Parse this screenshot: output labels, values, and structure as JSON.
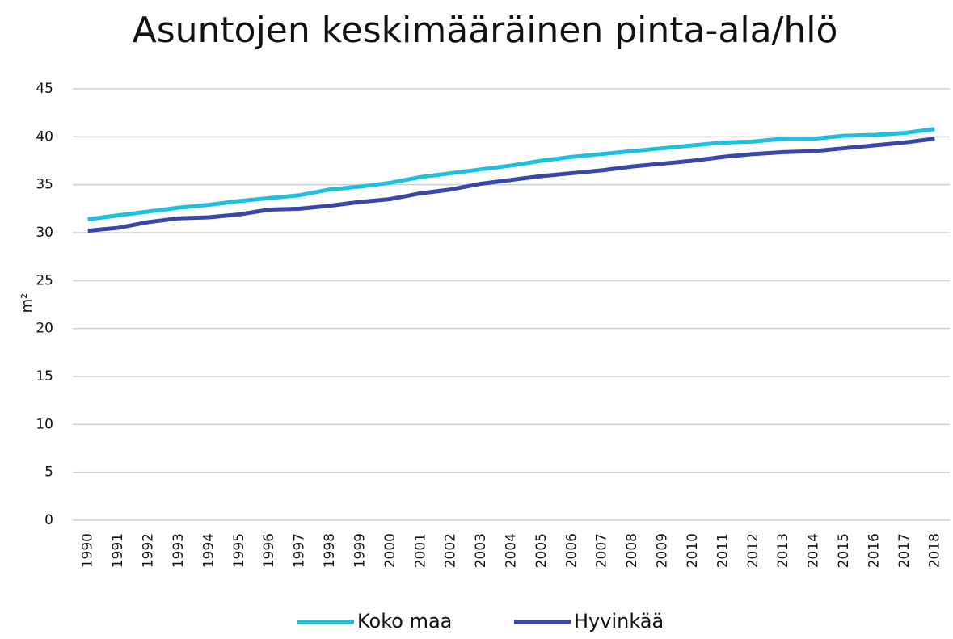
{
  "chart_data": {
    "type": "line",
    "title": "Asuntojen keskimääräinen pinta-ala/hlö",
    "y_label": "m²",
    "categories": [
      "1990",
      "1991",
      "1992",
      "1993",
      "1994",
      "1995",
      "1996",
      "1997",
      "1998",
      "1999",
      "2000",
      "2001",
      "2002",
      "2003",
      "2004",
      "2005",
      "2006",
      "2007",
      "2008",
      "2009",
      "2010",
      "2011",
      "2012",
      "2013",
      "2014",
      "2015",
      "2016",
      "2017",
      "2018"
    ],
    "series": [
      {
        "name": "Koko maa",
        "color": "#1ec0de",
        "values": [
          31.4,
          31.8,
          32.2,
          32.6,
          32.9,
          33.3,
          33.6,
          33.9,
          34.5,
          34.8,
          35.2,
          35.8,
          36.2,
          36.6,
          37.0,
          37.5,
          37.9,
          38.2,
          38.5,
          38.8,
          39.1,
          39.4,
          39.5,
          39.8,
          39.8,
          40.1,
          40.2,
          40.4,
          40.8
        ]
      },
      {
        "name": "Hyvinkää",
        "color": "#3a46a8",
        "values": [
          30.2,
          30.5,
          31.1,
          31.5,
          31.6,
          31.9,
          32.4,
          32.5,
          32.8,
          33.2,
          33.5,
          34.1,
          34.5,
          35.1,
          35.5,
          35.9,
          36.2,
          36.5,
          36.9,
          37.2,
          37.5,
          37.9,
          38.2,
          38.4,
          38.5,
          38.8,
          39.1,
          39.4,
          39.8
        ]
      }
    ],
    "ylim": [
      0,
      45
    ],
    "yticks": [
      0,
      5,
      10,
      15,
      20,
      25,
      30,
      35,
      40,
      45
    ],
    "grid": true,
    "legend": "bottom"
  }
}
